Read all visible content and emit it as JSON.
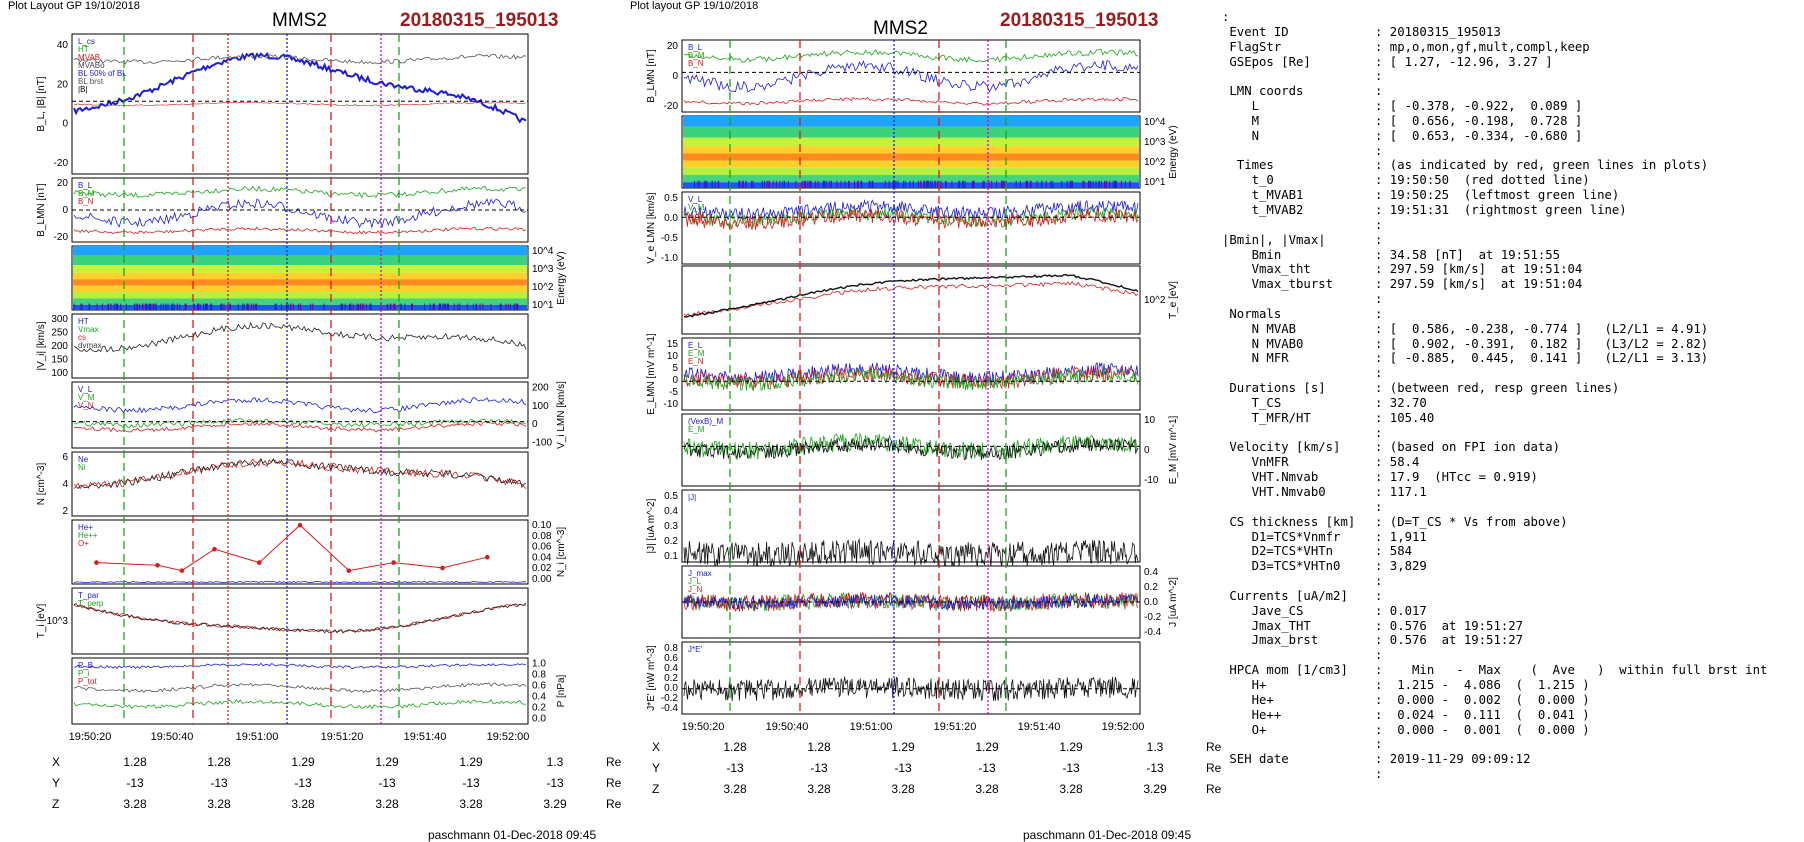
{
  "left": {
    "header": "Plot Layout GP 19/10/2018",
    "spacecraft": "MMS2",
    "event": "20180315_195013",
    "footer": "paschmann 01-Dec-2018 09:45",
    "time_ticks": [
      "19:50:20",
      "19:50:40",
      "19:51:00",
      "19:51:20",
      "19:51:40",
      "19:52:00"
    ],
    "position": {
      "rows": [
        {
          "label": "X",
          "values": [
            "1.28",
            "1.28",
            "1.29",
            "1.29",
            "1.29",
            "1.3"
          ],
          "unit": "Re"
        },
        {
          "label": "Y",
          "values": [
            "-13",
            "-13",
            "-13",
            "-13",
            "-13",
            "-13"
          ],
          "unit": "Re"
        },
        {
          "label": "Z",
          "values": [
            "3.28",
            "3.28",
            "3.28",
            "3.28",
            "3.28",
            "3.29"
          ],
          "unit": "Re"
        }
      ]
    },
    "panels": [
      {
        "ylabel": "B_L, |B| [nT]",
        "ticks": [
          "40",
          "20",
          "0",
          "-20"
        ],
        "legend": [
          "L_cs",
          "HT",
          "MVAB",
          "MVABo",
          "BL 50% of BL",
          "BL brst",
          "|B|"
        ]
      },
      {
        "ylabel": "B_LMN [nT]",
        "ticks": [
          "20",
          "0",
          "-20"
        ],
        "legend": [
          "B_L",
          "B_M",
          "B_N"
        ]
      },
      {
        "ylabel": "Energy (eV)",
        "ticks": [
          "10^4",
          "10^3",
          "10^2",
          "10^1"
        ]
      },
      {
        "ylabel": "|V_i| [km/s]",
        "ticks": [
          "300",
          "250",
          "200",
          "150",
          "100"
        ],
        "legend": [
          "HT",
          "Vmax",
          "cs",
          "dvmax"
        ]
      },
      {
        "ylabel": "V_i LMN [km/s]",
        "ticks": [
          "200",
          "100",
          "0",
          "-100"
        ],
        "legend": [
          "V_L",
          "V_M",
          "V_N"
        ]
      },
      {
        "ylabel": "N [cm^-3]",
        "ticks": [
          "6",
          "4",
          "2"
        ],
        "legend": [
          "Ne",
          "Ni"
        ]
      },
      {
        "ylabel": "N_i [cm^-3]",
        "ticks": [
          "0.10",
          "0.08",
          "0.06",
          "0.04",
          "0.02",
          "0.00"
        ],
        "legend": [
          "He+",
          "He++",
          "O+"
        ]
      },
      {
        "ylabel": "T_i [eV]",
        "ticks": [
          "10^3"
        ],
        "legend": [
          "T_par",
          "T_perp"
        ]
      },
      {
        "ylabel": "P [nPa]",
        "ticks": [
          "1.0",
          "0.8",
          "0.6",
          "0.4",
          "0.2",
          "0.0"
        ],
        "legend": [
          "P_B",
          "P_i",
          "P_tot"
        ]
      }
    ]
  },
  "middle": {
    "header": "Plot layout GP 19/10/2018",
    "spacecraft": "MMS2",
    "event": "20180315_195013",
    "footer": "paschmann 01-Dec-2018 09:45",
    "time_ticks": [
      "19:50:20",
      "19:50:40",
      "19:51:00",
      "19:51:20",
      "19:51:40",
      "19:52:00"
    ],
    "position": {
      "rows": [
        {
          "label": "X",
          "values": [
            "1.28",
            "1.28",
            "1.29",
            "1.29",
            "1.29",
            "1.3"
          ],
          "unit": "Re"
        },
        {
          "label": "Y",
          "values": [
            "-13",
            "-13",
            "-13",
            "-13",
            "-13",
            "-13"
          ],
          "unit": "Re"
        },
        {
          "label": "Z",
          "values": [
            "3.28",
            "3.28",
            "3.28",
            "3.28",
            "3.28",
            "3.29"
          ],
          "unit": "Re"
        }
      ]
    },
    "panels": [
      {
        "ylabel": "B_LMN [nT]",
        "ticks": [
          "20",
          "0",
          "-20"
        ],
        "legend": [
          "B_L",
          "B_M",
          "B_N"
        ]
      },
      {
        "ylabel": "Energy (eV)",
        "ticks": [
          "10^4",
          "10^3",
          "10^2",
          "10^1"
        ]
      },
      {
        "ylabel": "V_e LMN [km/s]",
        "ticks": [
          "0.5",
          "0.0",
          "-0.5",
          "-1.0"
        ],
        "legend": [
          "V_L",
          "V_M",
          "V_N"
        ]
      },
      {
        "ylabel": "T_e [eV]",
        "ticks": [
          "10^2"
        ]
      },
      {
        "ylabel": "E_LMN [mV m^-1]",
        "ticks": [
          "15",
          "10",
          "5",
          "0",
          "-5",
          "-10"
        ],
        "legend": [
          "E_L",
          "E_M",
          "E_N"
        ]
      },
      {
        "ylabel": "E_M [mV m^-1]",
        "ticks": [
          "10",
          "0",
          "-10"
        ],
        "legend": [
          "(VexB)_M",
          "E_M"
        ]
      },
      {
        "ylabel": "|J| [uA m^-2]",
        "ticks": [
          "0.5",
          "0.4",
          "0.3",
          "0.2",
          "0.1"
        ],
        "legend": [
          "|J|"
        ]
      },
      {
        "ylabel": "J [uA m^-2]",
        "ticks": [
          "0.4",
          "0.2",
          "0.0",
          "-0.2",
          "-0.4"
        ],
        "legend": [
          "J_max",
          "J_L",
          "J_N"
        ]
      },
      {
        "ylabel": "J*E' [nW m^-3]",
        "ticks": [
          "0.8",
          "0.6",
          "0.4",
          "0.2",
          "0.0",
          "-0.2",
          "-0.4"
        ],
        "legend": [
          "J*E'"
        ]
      }
    ]
  },
  "info": [
    {
      "k": ":",
      "v": ""
    },
    {
      "k": " Event ID",
      "v": ": 20180315_195013"
    },
    {
      "k": " FlagStr",
      "v": ": mp,o,mon,gf,mult,compl,keep"
    },
    {
      "k": " GSEpos [Re]",
      "v": ": [ 1.27, -12.96, 3.27 ]"
    },
    {
      "k": "",
      "v": ":"
    },
    {
      "k": " LMN coords",
      "v": ":"
    },
    {
      "k": "    L",
      "v": ": [ -0.378, -0.922,  0.089 ]"
    },
    {
      "k": "    M",
      "v": ": [  0.656, -0.198,  0.728 ]"
    },
    {
      "k": "    N",
      "v": ": [  0.653, -0.334, -0.680 ]"
    },
    {
      "k": "",
      "v": ":"
    },
    {
      "k": "  Times",
      "v": ": (as indicated by red, green lines in plots)"
    },
    {
      "k": "    t_0",
      "v": ": 19:50:50  (red dotted line)"
    },
    {
      "k": "    t_MVAB1",
      "v": ": 19:50:25  (leftmost green line)"
    },
    {
      "k": "    t_MVAB2",
      "v": ": 19:51:31  (rightmost green line)"
    },
    {
      "k": "",
      "v": ":"
    },
    {
      "k": "|Bmin|, |Vmax|",
      "v": ":"
    },
    {
      "k": "    Bmin",
      "v": ": 34.58 [nT]  at 19:51:55"
    },
    {
      "k": "    Vmax_tht",
      "v": ": 297.59 [km/s]  at 19:51:04"
    },
    {
      "k": "    Vmax_tburst",
      "v": ": 297.59 [km/s]  at 19:51:04"
    },
    {
      "k": "",
      "v": ":"
    },
    {
      "k": " Normals",
      "v": ":"
    },
    {
      "k": "    N MVAB",
      "v": ": [  0.586, -0.238, -0.774 ]   (L2/L1 = 4.91)"
    },
    {
      "k": "    N MVAB0",
      "v": ": [  0.902, -0.391,  0.182 ]   (L3/L2 = 2.82)"
    },
    {
      "k": "    N MFR",
      "v": ": [ -0.885,  0.445,  0.141 ]   (L2/L1 = 3.13)"
    },
    {
      "k": "",
      "v": ":"
    },
    {
      "k": " Durations [s]",
      "v": ": (between red, resp green lines)"
    },
    {
      "k": "    T_CS",
      "v": ": 32.70"
    },
    {
      "k": "    T_MFR/HT",
      "v": ": 105.40"
    },
    {
      "k": "",
      "v": ":"
    },
    {
      "k": " Velocity [km/s]",
      "v": ": (based on FPI ion data)"
    },
    {
      "k": "    VnMFR",
      "v": ": 58.4"
    },
    {
      "k": "    VHT.Nmvab",
      "v": ": 17.9  (HTcc = 0.919)"
    },
    {
      "k": "    VHT.Nmvab0",
      "v": ": 117.1"
    },
    {
      "k": "",
      "v": ":"
    },
    {
      "k": " CS thickness [km]",
      "v": ": (D=T_CS * Vs from above)"
    },
    {
      "k": "    D1=TCS*Vnmfr",
      "v": ": 1,911"
    },
    {
      "k": "    D2=TCS*VHTn",
      "v": ": 584"
    },
    {
      "k": "    D3=TCS*VHTn0",
      "v": ": 3,829"
    },
    {
      "k": "",
      "v": ":"
    },
    {
      "k": " Currents [uA/m2]",
      "v": ":"
    },
    {
      "k": "    Jave_CS",
      "v": ": 0.017"
    },
    {
      "k": "    Jmax_THT",
      "v": ": 0.576  at 19:51:27"
    },
    {
      "k": "    Jmax_brst",
      "v": ": 0.576  at 19:51:27"
    },
    {
      "k": "",
      "v": ":"
    },
    {
      "k": " HPCA mom [1/cm3]",
      "v": ":    Min   -  Max    (  Ave   )  within full brst int"
    },
    {
      "k": "    H+",
      "v": ":  1.215 -  4.086  (  1.215 )"
    },
    {
      "k": "    He+",
      "v": ":  0.000 -  0.002  (  0.000 )"
    },
    {
      "k": "    He++",
      "v": ":  0.024 -  0.111  (  0.041 )"
    },
    {
      "k": "    O+",
      "v": ":  0.000 -  0.001  (  0.000 )"
    },
    {
      "k": "",
      "v": ":"
    },
    {
      "k": " SEH date",
      "v": ": 2019-11-29 09:09:12"
    },
    {
      "k": "",
      "v": ":"
    }
  ],
  "chart_data": [
    {
      "type": "line",
      "title": "MMS2 20180315_195013",
      "x": [
        "19:50:20",
        "19:50:40",
        "19:51:00",
        "19:51:20",
        "19:51:40",
        "19:52:00"
      ],
      "series": [
        {
          "name": "|B|",
          "values": [
            36,
            37,
            36,
            36,
            35,
            30
          ]
        },
        {
          "name": "B_L",
          "values": [
            0,
            -8,
            2,
            14,
            6,
            5
          ]
        }
      ],
      "ylabel": "B_L, |B| [nT]",
      "ylim": [
        -25,
        42
      ]
    },
    {
      "type": "line",
      "title": "N_i [cm^-3] He++",
      "x": [
        "19:50:16",
        "19:50:31",
        "19:50:37",
        "19:50:45",
        "19:50:56",
        "19:51:06",
        "19:51:18",
        "19:51:29",
        "19:51:41",
        "19:51:52"
      ],
      "series": [
        {
          "name": "He++",
          "values": [
            0.04,
            0.035,
            0.025,
            0.065,
            0.04,
            0.11,
            0.025,
            0.04,
            0.03,
            0.05
          ]
        }
      ],
      "ylabel": "N_i [cm^-3]",
      "ylim": [
        0,
        0.11
      ]
    }
  ]
}
